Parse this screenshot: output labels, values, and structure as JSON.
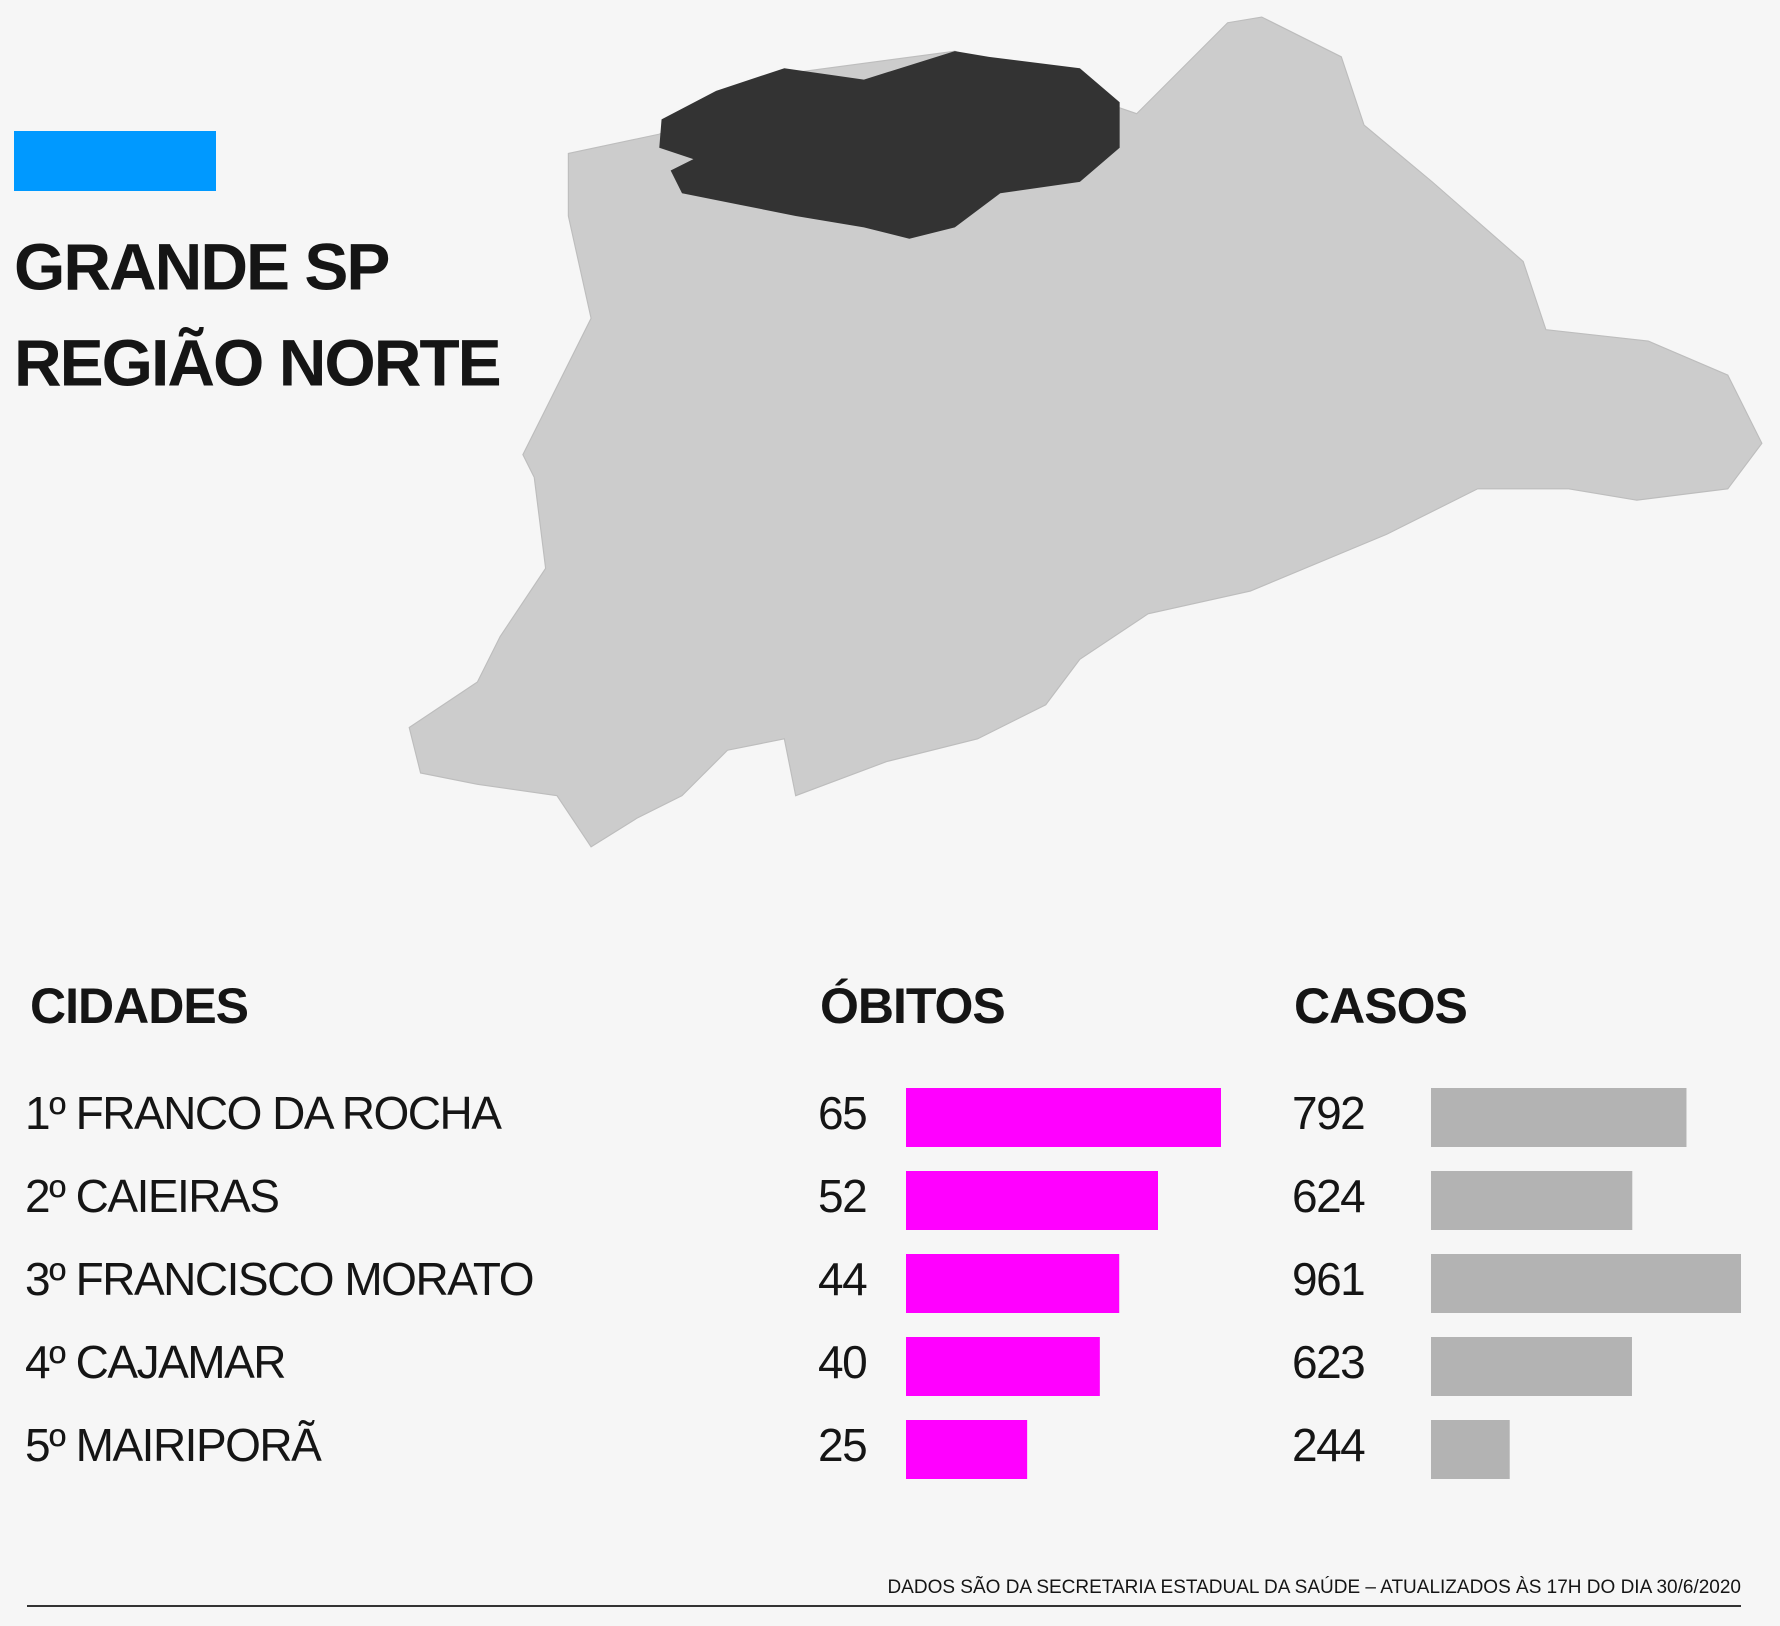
{
  "chart_data": {
    "type": "bar",
    "title": "GRANDE SP",
    "subtitle": "REGIÃO NORTE",
    "category_label": "CIDADES",
    "categories": [
      "1º FRANCO DA ROCHA",
      "2º CAIEIRAS",
      "3º FRANCISCO MORATO",
      "4º CAJAMAR",
      "5º MAIRIPORÃ"
    ],
    "series": [
      {
        "name": "ÓBITOS",
        "color": "#ff00ff",
        "values": [
          65,
          52,
          44,
          40,
          25
        ]
      },
      {
        "name": "CASOS",
        "color": "#b3b3b3",
        "values": [
          792,
          624,
          961,
          623,
          244
        ]
      }
    ],
    "source": "DADOS SÃO DA SECRETARIA ESTADUAL DA SAÚDE – ATUALIZADOS ÀS 17H DO DIA 30/6/2020"
  }
}
